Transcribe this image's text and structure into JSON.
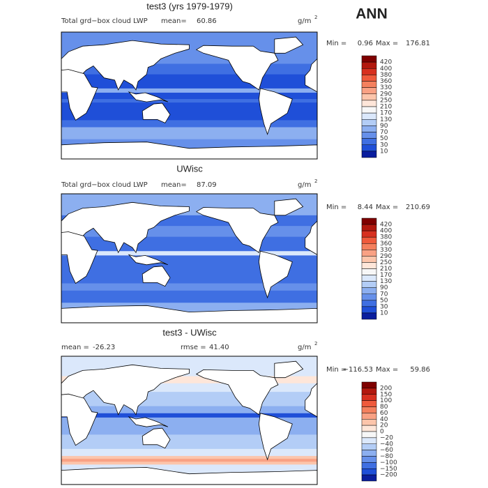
{
  "season": "ANN",
  "panels": [
    {
      "title": "test3 (yrs 1979-1979)",
      "description": "Total grd−box cloud LWP",
      "stats": [
        {
          "label": "mean=",
          "value": "60.86"
        }
      ],
      "units": "g/m",
      "units_exponent": "2",
      "min_label": "Min =",
      "min": "0.96",
      "max_label": "Max =",
      "max": "176.81",
      "colorbar": {
        "labels": [
          "420",
          "400",
          "380",
          "360",
          "330",
          "290",
          "250",
          "210",
          "170",
          "130",
          "90",
          "70",
          "50",
          "30",
          "10"
        ],
        "colors": [
          "#7f0000",
          "#b2180e",
          "#d7301f",
          "#ef5a3c",
          "#f4805e",
          "#f9a184",
          "#fcc5ab",
          "#fee6d9",
          "#f7f7f7",
          "#dbe8fb",
          "#b3cdf6",
          "#8caff0",
          "#6690ea",
          "#3f6fe2",
          "#1f4fd8",
          "#0a1e9e"
        ]
      }
    },
    {
      "title": "UWisc",
      "description": "Total grd−box cloud LWP",
      "stats": [
        {
          "label": "mean=",
          "value": "87.09"
        }
      ],
      "units": "g/m",
      "units_exponent": "2",
      "min_label": "Min =",
      "min": "8.44",
      "max_label": "Max =",
      "max": "210.69",
      "colorbar": {
        "labels": [
          "420",
          "400",
          "380",
          "360",
          "330",
          "290",
          "250",
          "210",
          "170",
          "130",
          "90",
          "70",
          "50",
          "30",
          "10"
        ],
        "colors": [
          "#7f0000",
          "#b2180e",
          "#d7301f",
          "#ef5a3c",
          "#f4805e",
          "#f9a184",
          "#fcc5ab",
          "#fee6d9",
          "#f7f7f7",
          "#dbe8fb",
          "#b3cdf6",
          "#8caff0",
          "#6690ea",
          "#3f6fe2",
          "#1f4fd8",
          "#0a1e9e"
        ]
      }
    },
    {
      "title": "test3 - UWisc",
      "stats": [
        {
          "label": "mean =",
          "value": "-26.23"
        },
        {
          "label": "rmse =",
          "value": "41.40"
        }
      ],
      "units": "g/m",
      "units_exponent": "2",
      "min_label": "Min =",
      "min": "−116.53",
      "max_label": "Max =",
      "max": "59.86",
      "colorbar": {
        "labels": [
          "200",
          "150",
          "100",
          "80",
          "60",
          "40",
          "20",
          "0",
          "−20",
          "−40",
          "−60",
          "−80",
          "−100",
          "−150",
          "−200"
        ],
        "colors": [
          "#7f0000",
          "#b2180e",
          "#d7301f",
          "#ef5a3c",
          "#f4805e",
          "#f9a184",
          "#fcc5ab",
          "#fee6d9",
          "#f7f7f7",
          "#dbe8fb",
          "#b3cdf6",
          "#8caff0",
          "#6690ea",
          "#3f6fe2",
          "#1f4fd8",
          "#0a1e9e"
        ]
      }
    }
  ]
}
